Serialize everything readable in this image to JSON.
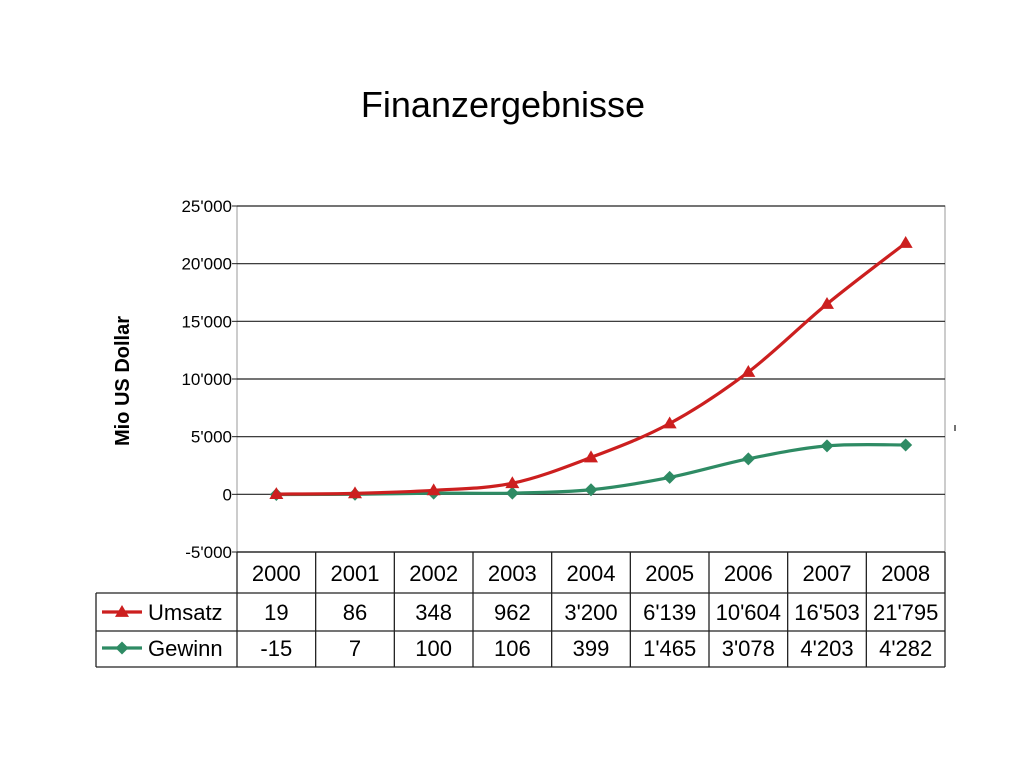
{
  "slide": {
    "title": "Finanzergebnisse"
  },
  "chart_data": {
    "type": "line",
    "title": "",
    "xlabel": "",
    "ylabel": "Mio US Dollar",
    "categories": [
      "2000",
      "2001",
      "2002",
      "2003",
      "2004",
      "2005",
      "2006",
      "2007",
      "2008"
    ],
    "ylim": [
      -5000,
      25000
    ],
    "yticks": [
      -5000,
      0,
      5000,
      10000,
      15000,
      20000,
      25000
    ],
    "ytick_labels": [
      "-5'000",
      "0",
      "5'000",
      "10'000",
      "15'000",
      "20'000",
      "25'000"
    ],
    "grid": true,
    "legend": "data-table-left",
    "series": [
      {
        "name": "Umsatz",
        "color": "#cc1f1f",
        "marker": "triangle",
        "values": [
          19,
          86,
          348,
          962,
          3200,
          6139,
          10604,
          16503,
          21795
        ],
        "value_labels": [
          "19",
          "86",
          "348",
          "962",
          "3'200",
          "6'139",
          "10'604",
          "16'503",
          "21'795"
        ]
      },
      {
        "name": "Gewinn",
        "color": "#2e8b64",
        "marker": "diamond",
        "values": [
          -15,
          7,
          100,
          106,
          399,
          1465,
          3078,
          4203,
          4282
        ],
        "value_labels": [
          "-15",
          "7",
          "100",
          "106",
          "399",
          "1'465",
          "3'078",
          "4'203",
          "4'282"
        ]
      }
    ]
  }
}
